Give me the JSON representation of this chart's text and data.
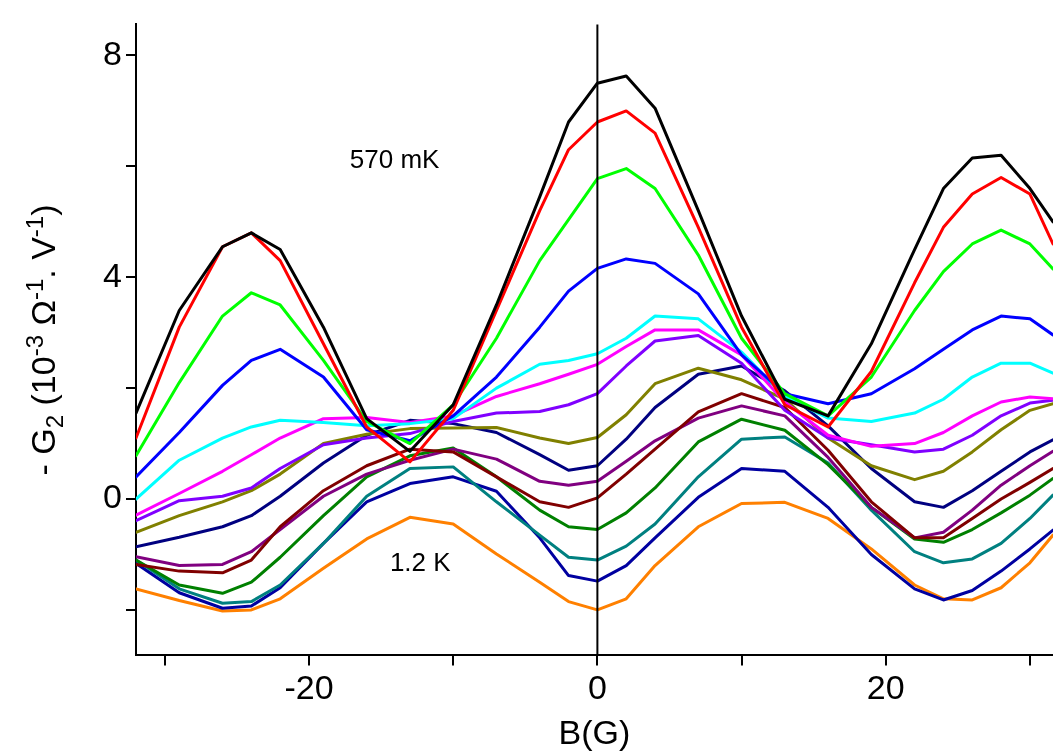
{
  "chart_data": {
    "type": "line",
    "xlabel": "B(G)",
    "ylabel": "- G$_{2}$ (10$^{-3}$ Ω$^{-1}$. V$^{-1}$)",
    "x": [
      -32,
      -29,
      -26,
      -24,
      -22,
      -19,
      -16,
      -13,
      -10,
      -7,
      -4,
      -2,
      0,
      2,
      4,
      7,
      10,
      13,
      16,
      19,
      22,
      24,
      26,
      28,
      30,
      31.6
    ],
    "xlim": [
      -32,
      31.6
    ],
    "ylim": [
      -2.82,
      8.56
    ],
    "xticks": [
      {
        "value": -30,
        "label": null
      },
      -20,
      {
        "value": -10,
        "label": null
      },
      0,
      {
        "value": 10,
        "label": null
      },
      20,
      {
        "value": 30,
        "label": null
      }
    ],
    "yticks": [
      {
        "value": -2,
        "label": null
      },
      0,
      {
        "value": 2,
        "label": null
      },
      4,
      {
        "value": 6,
        "label": null
      },
      8
    ],
    "grid": false,
    "legend": false,
    "marker": "none",
    "line_style": "solid",
    "ref_lines": [
      {
        "axis": "x",
        "value": 0,
        "color": "#000000"
      }
    ],
    "annotations": [
      "570 mK",
      "1.2 K"
    ],
    "series": [
      {
        "color": "#000000",
        "values": [
          1.55,
          3.4,
          4.55,
          4.8,
          4.5,
          3.1,
          1.45,
          0.86,
          1.7,
          3.5,
          5.45,
          6.8,
          7.5,
          7.63,
          7.05,
          5.2,
          3.3,
          1.8,
          1.5,
          2.8,
          4.5,
          5.6,
          6.15,
          6.2,
          5.6,
          5.0
        ]
      },
      {
        "color": "#ff0000",
        "values": [
          1.1,
          3.1,
          4.55,
          4.8,
          4.3,
          2.8,
          1.3,
          0.67,
          1.6,
          3.4,
          5.2,
          6.3,
          6.8,
          7.0,
          6.6,
          4.9,
          3.1,
          1.7,
          1.3,
          2.3,
          3.9,
          4.9,
          5.5,
          5.8,
          5.5,
          4.6
        ]
      },
      {
        "color": "#00ff00",
        "values": [
          0.78,
          2.1,
          3.3,
          3.72,
          3.5,
          2.5,
          1.4,
          1.0,
          1.7,
          2.9,
          4.3,
          5.04,
          5.78,
          5.96,
          5.6,
          4.4,
          2.9,
          1.9,
          1.5,
          2.2,
          3.4,
          4.1,
          4.6,
          4.85,
          4.6,
          4.15
        ]
      },
      {
        "color": "#0000ff",
        "values": [
          0.4,
          1.2,
          2.05,
          2.5,
          2.7,
          2.2,
          1.25,
          1.05,
          1.5,
          2.2,
          3.1,
          3.75,
          4.16,
          4.33,
          4.25,
          3.7,
          2.6,
          1.9,
          1.72,
          1.9,
          2.35,
          2.7,
          3.05,
          3.3,
          3.25,
          2.96
        ]
      },
      {
        "color": "#00ffff",
        "values": [
          0.0,
          0.7,
          1.1,
          1.3,
          1.42,
          1.38,
          1.32,
          1.36,
          1.45,
          2.0,
          2.43,
          2.5,
          2.62,
          2.9,
          3.3,
          3.25,
          2.65,
          1.85,
          1.46,
          1.4,
          1.55,
          1.8,
          2.2,
          2.45,
          2.45,
          2.27
        ]
      },
      {
        "color": "#ff00ff",
        "values": [
          -0.29,
          0.1,
          0.5,
          0.8,
          1.1,
          1.45,
          1.47,
          1.38,
          1.5,
          1.85,
          2.08,
          2.25,
          2.43,
          2.75,
          3.05,
          3.05,
          2.6,
          1.75,
          1.15,
          0.95,
          1.0,
          1.2,
          1.5,
          1.75,
          1.84,
          1.81
        ]
      },
      {
        "color": "#8000ff",
        "values": [
          -0.39,
          -0.03,
          0.05,
          0.2,
          0.55,
          0.98,
          1.1,
          1.18,
          1.4,
          1.55,
          1.58,
          1.7,
          1.9,
          2.4,
          2.85,
          2.95,
          2.45,
          1.6,
          1.1,
          0.98,
          0.85,
          0.9,
          1.15,
          1.5,
          1.73,
          1.78
        ]
      },
      {
        "color": "#808000",
        "values": [
          -0.6,
          -0.3,
          -0.05,
          0.15,
          0.45,
          1.0,
          1.17,
          1.27,
          1.28,
          1.29,
          1.1,
          1.0,
          1.11,
          1.52,
          2.08,
          2.36,
          2.15,
          1.8,
          1.1,
          0.6,
          0.35,
          0.5,
          0.85,
          1.25,
          1.6,
          1.72
        ]
      },
      {
        "color": "#000080",
        "values": [
          -0.86,
          -0.69,
          -0.5,
          -0.3,
          0.05,
          0.65,
          1.15,
          1.42,
          1.36,
          1.2,
          0.8,
          0.52,
          0.6,
          1.08,
          1.65,
          2.25,
          2.4,
          1.95,
          1.32,
          0.55,
          -0.05,
          -0.15,
          0.15,
          0.5,
          0.85,
          1.07
        ]
      },
      {
        "color": "#800000",
        "values": [
          -1.18,
          -1.3,
          -1.33,
          -1.1,
          -0.5,
          0.15,
          0.6,
          0.9,
          0.85,
          0.4,
          -0.05,
          -0.15,
          0.02,
          0.45,
          0.9,
          1.57,
          1.9,
          1.65,
          0.88,
          -0.05,
          -0.7,
          -0.7,
          -0.35,
          0.0,
          0.3,
          0.55
        ]
      },
      {
        "color": "#800080",
        "values": [
          -1.04,
          -1.2,
          -1.18,
          -0.95,
          -0.55,
          0.05,
          0.45,
          0.7,
          0.9,
          0.72,
          0.32,
          0.25,
          0.32,
          0.68,
          1.05,
          1.46,
          1.68,
          1.5,
          0.75,
          -0.15,
          -0.7,
          -0.6,
          -0.2,
          0.25,
          0.6,
          0.86
        ]
      },
      {
        "color": "#008000",
        "values": [
          -1.1,
          -1.55,
          -1.7,
          -1.5,
          -1.05,
          -0.3,
          0.4,
          0.78,
          0.92,
          0.4,
          -0.2,
          -0.5,
          -0.55,
          -0.25,
          0.2,
          1.03,
          1.44,
          1.24,
          0.62,
          -0.15,
          -0.72,
          -0.78,
          -0.55,
          -0.25,
          0.07,
          0.37
        ]
      },
      {
        "color": "#008080",
        "values": [
          -1.1,
          -1.62,
          -1.88,
          -1.85,
          -1.55,
          -0.8,
          0.05,
          0.55,
          0.58,
          -0.05,
          -0.65,
          -1.05,
          -1.1,
          -0.85,
          -0.45,
          0.4,
          1.08,
          1.12,
          0.65,
          -0.2,
          -0.95,
          -1.15,
          -1.08,
          -0.8,
          -0.35,
          0.07
        ]
      },
      {
        "color": "#0000a0",
        "values": [
          -1.16,
          -1.69,
          -1.97,
          -1.93,
          -1.6,
          -0.8,
          -0.05,
          0.28,
          0.4,
          0.14,
          -0.7,
          -1.38,
          -1.48,
          -1.2,
          -0.7,
          0.03,
          0.55,
          0.5,
          -0.15,
          -1.0,
          -1.62,
          -1.82,
          -1.65,
          -1.3,
          -0.9,
          -0.56
        ]
      },
      {
        "color": "#ff8000",
        "values": [
          -1.62,
          -1.83,
          -2.02,
          -2.0,
          -1.8,
          -1.25,
          -0.72,
          -0.33,
          -0.45,
          -0.99,
          -1.5,
          -1.85,
          -2.0,
          -1.8,
          -1.2,
          -0.5,
          -0.08,
          -0.06,
          -0.35,
          -0.9,
          -1.55,
          -1.8,
          -1.82,
          -1.6,
          -1.15,
          -0.65
        ]
      }
    ]
  }
}
